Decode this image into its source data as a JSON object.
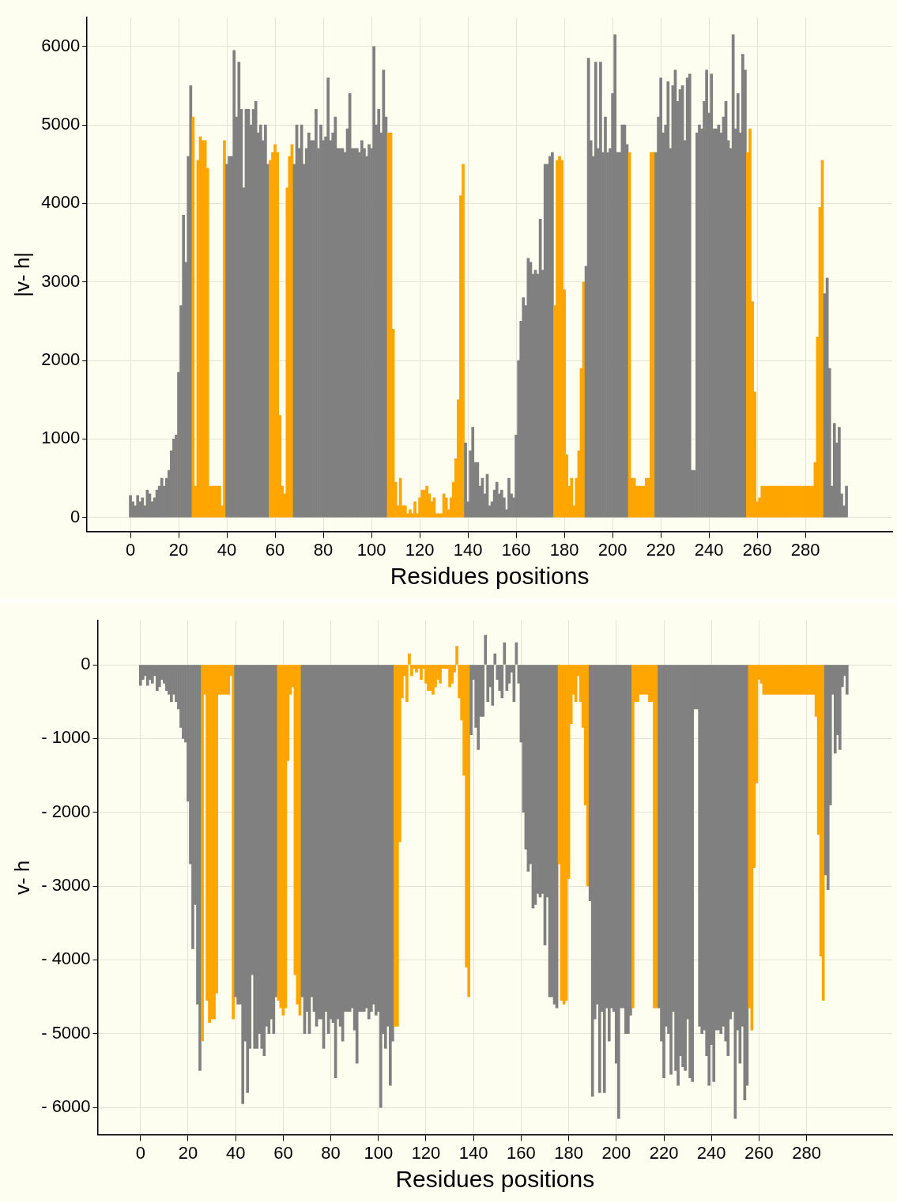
{
  "chart_data": [
    {
      "type": "bar",
      "xlabel": "Residues positions",
      "ylabel": "|v- h|",
      "grid": true,
      "xlim": [
        -18,
        316
      ],
      "ylim": [
        -180,
        6370
      ],
      "xticks": [
        0,
        20,
        40,
        60,
        80,
        100,
        120,
        140,
        160,
        180,
        200,
        220,
        240,
        260,
        280
      ],
      "yticks": [
        0,
        1000,
        2000,
        3000,
        4000,
        5000,
        6000
      ],
      "x": [
        0,
        1,
        2,
        3,
        4,
        5,
        6,
        7,
        8,
        9,
        10,
        11,
        12,
        13,
        14,
        15,
        16,
        17,
        18,
        19,
        20,
        21,
        22,
        23,
        24,
        25,
        26,
        27,
        28,
        29,
        30,
        31,
        32,
        33,
        34,
        35,
        36,
        37,
        38,
        39,
        40,
        41,
        42,
        43,
        44,
        45,
        46,
        47,
        48,
        49,
        50,
        51,
        52,
        53,
        54,
        55,
        56,
        57,
        58,
        59,
        60,
        61,
        62,
        63,
        64,
        65,
        66,
        67,
        68,
        69,
        70,
        71,
        72,
        73,
        74,
        75,
        76,
        77,
        78,
        79,
        80,
        81,
        82,
        83,
        84,
        85,
        86,
        87,
        88,
        89,
        90,
        91,
        92,
        93,
        94,
        95,
        96,
        97,
        98,
        99,
        100,
        101,
        102,
        103,
        104,
        105,
        106,
        107,
        108,
        109,
        110,
        111,
        112,
        113,
        114,
        115,
        116,
        117,
        118,
        119,
        120,
        121,
        122,
        123,
        124,
        125,
        126,
        127,
        128,
        129,
        130,
        131,
        132,
        133,
        134,
        135,
        136,
        137,
        138,
        139,
        140,
        141,
        142,
        143,
        144,
        145,
        146,
        147,
        148,
        149,
        150,
        151,
        152,
        153,
        154,
        155,
        156,
        157,
        158,
        159,
        160,
        161,
        162,
        163,
        164,
        165,
        166,
        167,
        168,
        169,
        170,
        171,
        172,
        173,
        174,
        175,
        176,
        177,
        178,
        179,
        180,
        181,
        182,
        183,
        184,
        185,
        186,
        187,
        188,
        189,
        190,
        191,
        192,
        193,
        194,
        195,
        196,
        197,
        198,
        199,
        200,
        201,
        202,
        203,
        204,
        205,
        206,
        207,
        208,
        209,
        210,
        211,
        212,
        213,
        214,
        215,
        216,
        217,
        218,
        219,
        220,
        221,
        222,
        223,
        224,
        225,
        226,
        227,
        228,
        229,
        230,
        231,
        232,
        233,
        234,
        235,
        236,
        237,
        238,
        239,
        240,
        241,
        242,
        243,
        244,
        245,
        246,
        247,
        248,
        249,
        250,
        251,
        252,
        253,
        254,
        255,
        256,
        257,
        258,
        259,
        260,
        261,
        262,
        263,
        264,
        265,
        266,
        267,
        268,
        269,
        270,
        271,
        272,
        273,
        274,
        275,
        276,
        277,
        278,
        279,
        280,
        281,
        282,
        283,
        284,
        285,
        286,
        287,
        288,
        289,
        290,
        291,
        292,
        293,
        294,
        295,
        296,
        297
      ],
      "values": [
        280,
        200,
        150,
        280,
        200,
        250,
        150,
        350,
        300,
        200,
        250,
        350,
        400,
        500,
        400,
        500,
        600,
        850,
        1000,
        1050,
        1850,
        2700,
        3850,
        3250,
        4600,
        5500,
        5100,
        400,
        4550,
        4850,
        4800,
        4800,
        4450,
        400,
        400,
        400,
        400,
        400,
        150,
        4800,
        4500,
        4600,
        4600,
        5950,
        5100,
        5800,
        5200,
        4200,
        5200,
        5200,
        5000,
        5200,
        5300,
        4900,
        5000,
        4800,
        5000,
        4500,
        4550,
        4650,
        4750,
        4650,
        1300,
        400,
        300,
        4200,
        4600,
        4750,
        4500,
        5000,
        4700,
        5000,
        4500,
        4700,
        4900,
        4800,
        4800,
        5200,
        4700,
        5000,
        4800,
        4850,
        5600,
        4800,
        4900,
        5100,
        4700,
        4700,
        4700,
        4650,
        4950,
        5400,
        4700,
        4700,
        4700,
        4650,
        4800,
        4700,
        4600,
        4750,
        4700,
        6000,
        5000,
        5200,
        4900,
        5700,
        5100,
        4900,
        4900,
        2400,
        450,
        150,
        500,
        150,
        150,
        50,
        100,
        50,
        200,
        50,
        250,
        350,
        350,
        400,
        300,
        200,
        250,
        50,
        50,
        50,
        300,
        250,
        100,
        250,
        450,
        750,
        1500,
        4100,
        4500,
        950,
        200,
        850,
        1150,
        700,
        700,
        400,
        500,
        300,
        550,
        150,
        200,
        350,
        450,
        300,
        350,
        250,
        100,
        500,
        300,
        250,
        1050,
        2000,
        2500,
        2800,
        2700,
        3300,
        3250,
        3100,
        3150,
        3100,
        3800,
        3150,
        4500,
        4500,
        4600,
        4650,
        2700,
        4550,
        4600,
        4550,
        2900,
        800,
        400,
        500,
        150,
        500,
        850,
        1900,
        3000,
        3200,
        5850,
        4800,
        4600,
        5800,
        4700,
        5800,
        4650,
        5100,
        4650,
        4700,
        5400,
        6150,
        4650,
        4650,
        5000,
        5000,
        4750,
        4650,
        500,
        500,
        400,
        400,
        400,
        400,
        500,
        500,
        4650,
        4650,
        4650,
        5100,
        5600,
        4900,
        5000,
        5550,
        4700,
        5500,
        5700,
        5300,
        5450,
        5500,
        4800,
        5600,
        5650,
        600,
        600,
        4900,
        5000,
        4950,
        5300,
        5700,
        5150,
        5650,
        4950,
        4950,
        5000,
        4900,
        5100,
        5300,
        4800,
        4700,
        6150,
        4950,
        5400,
        4900,
        5900,
        5700,
        4650,
        4950,
        2750,
        1600,
        200,
        250,
        400,
        400,
        400,
        400,
        400,
        400,
        400,
        400,
        400,
        400,
        400,
        400,
        400,
        400,
        400,
        400,
        400,
        400,
        400,
        400,
        400,
        400,
        700,
        2300,
        3950,
        4550,
        2850,
        3050,
        1900,
        400,
        1200,
        950,
        1150,
        300,
        150,
        400
      ],
      "colors": [
        "#808080",
        "#808080",
        "#808080",
        "#808080",
        "#808080",
        "#808080",
        "#808080",
        "#808080",
        "#808080",
        "#808080",
        "#808080",
        "#808080",
        "#808080",
        "#808080",
        "#808080",
        "#808080",
        "#808080",
        "#808080",
        "#808080",
        "#808080",
        "#808080",
        "#808080",
        "#808080",
        "#808080",
        "#808080",
        "#808080",
        "#ffa500",
        "#ffa500",
        "#ffa500",
        "#ffa500",
        "#ffa500",
        "#ffa500",
        "#ffa500",
        "#ffa500",
        "#ffa500",
        "#ffa500",
        "#ffa500",
        "#ffa500",
        "#ffa500",
        "#ffa500",
        "#808080",
        "#808080",
        "#808080",
        "#808080",
        "#808080",
        "#808080",
        "#808080",
        "#808080",
        "#808080",
        "#808080",
        "#808080",
        "#808080",
        "#808080",
        "#808080",
        "#808080",
        "#808080",
        "#808080",
        "#808080",
        "#ffa500",
        "#ffa500",
        "#ffa500",
        "#ffa500",
        "#ffa500",
        "#ffa500",
        "#ffa500",
        "#ffa500",
        "#ffa500",
        "#ffa500",
        "#808080",
        "#808080",
        "#808080",
        "#808080",
        "#808080",
        "#808080",
        "#808080",
        "#808080",
        "#808080",
        "#808080",
        "#808080",
        "#808080",
        "#808080",
        "#808080",
        "#808080",
        "#808080",
        "#808080",
        "#808080",
        "#808080",
        "#808080",
        "#808080",
        "#808080",
        "#808080",
        "#808080",
        "#808080",
        "#808080",
        "#808080",
        "#808080",
        "#808080",
        "#808080",
        "#808080",
        "#808080",
        "#808080",
        "#808080",
        "#808080",
        "#808080",
        "#808080",
        "#808080",
        "#808080",
        "#ffa500",
        "#ffa500",
        "#ffa500",
        "#ffa500",
        "#ffa500",
        "#ffa500",
        "#ffa500",
        "#ffa500",
        "#ffa500",
        "#ffa500",
        "#ffa500",
        "#ffa500",
        "#ffa500",
        "#ffa500",
        "#ffa500",
        "#ffa500",
        "#ffa500",
        "#ffa500",
        "#ffa500",
        "#ffa500",
        "#ffa500",
        "#ffa500",
        "#ffa500",
        "#ffa500",
        "#ffa500",
        "#ffa500",
        "#ffa500",
        "#ffa500",
        "#ffa500",
        "#ffa500",
        "#ffa500",
        "#ffa500",
        "#808080",
        "#808080",
        "#808080",
        "#808080",
        "#808080",
        "#808080",
        "#808080",
        "#808080",
        "#808080",
        "#808080",
        "#808080",
        "#808080",
        "#808080",
        "#808080",
        "#808080",
        "#808080",
        "#808080",
        "#808080",
        "#808080",
        "#808080",
        "#808080",
        "#808080",
        "#808080",
        "#808080",
        "#808080",
        "#808080",
        "#808080",
        "#808080",
        "#808080",
        "#808080",
        "#808080",
        "#808080",
        "#808080",
        "#808080",
        "#808080",
        "#808080",
        "#808080",
        "#ffa500",
        "#ffa500",
        "#ffa500",
        "#ffa500",
        "#ffa500",
        "#ffa500",
        "#ffa500",
        "#ffa500",
        "#ffa500",
        "#ffa500",
        "#ffa500",
        "#ffa500",
        "#ffa500",
        "#808080",
        "#808080",
        "#808080",
        "#808080",
        "#808080",
        "#808080",
        "#808080",
        "#808080",
        "#808080",
        "#808080",
        "#808080",
        "#808080",
        "#808080",
        "#808080",
        "#808080",
        "#808080",
        "#808080",
        "#808080",
        "#ffa500",
        "#ffa500",
        "#ffa500",
        "#ffa500",
        "#ffa500",
        "#ffa500",
        "#ffa500",
        "#ffa500",
        "#ffa500",
        "#ffa500",
        "#ffa500",
        "#808080",
        "#808080",
        "#808080",
        "#808080",
        "#808080",
        "#808080",
        "#808080",
        "#808080",
        "#808080",
        "#808080",
        "#808080",
        "#808080",
        "#808080",
        "#808080",
        "#808080",
        "#808080",
        "#808080",
        "#808080",
        "#808080",
        "#808080",
        "#808080",
        "#808080",
        "#808080",
        "#808080",
        "#808080",
        "#808080",
        "#808080",
        "#808080",
        "#808080",
        "#808080",
        "#808080",
        "#808080",
        "#808080",
        "#808080",
        "#808080",
        "#808080",
        "#808080",
        "#808080",
        "#ffa500",
        "#ffa500",
        "#ffa500",
        "#ffa500",
        "#ffa500",
        "#ffa500",
        "#ffa500",
        "#ffa500",
        "#ffa500",
        "#ffa500",
        "#ffa500",
        "#ffa500",
        "#ffa500",
        "#ffa500",
        "#ffa500",
        "#ffa500",
        "#ffa500",
        "#ffa500",
        "#ffa500",
        "#ffa500",
        "#ffa500",
        "#ffa500",
        "#ffa500",
        "#ffa500",
        "#ffa500",
        "#ffa500",
        "#ffa500",
        "#ffa500",
        "#ffa500",
        "#ffa500",
        "#ffa500",
        "#ffa500",
        "#808080",
        "#808080",
        "#808080",
        "#808080",
        "#808080",
        "#808080",
        "#808080",
        "#808080",
        "#808080",
        "#808080"
      ]
    },
    {
      "type": "bar",
      "xlabel": "Residues positions",
      "ylabel": "v- h",
      "grid": true,
      "xlim": [
        -18,
        316
      ],
      "ylim": [
        -6370,
        600
      ],
      "xticks": [
        0,
        20,
        40,
        60,
        80,
        100,
        120,
        140,
        160,
        180,
        200,
        220,
        240,
        260,
        280
      ],
      "yticks": [
        {
          "value": -6000,
          "label": "- 6000"
        },
        {
          "value": -5000,
          "label": "- 5000"
        },
        {
          "value": -4000,
          "label": "- 4000"
        },
        {
          "value": -3000,
          "label": "- 3000"
        },
        {
          "value": -2000,
          "label": "- 2000"
        },
        {
          "value": -1000,
          "label": "- 1000"
        },
        0
      ],
      "x": [
        0,
        1,
        2,
        3,
        4,
        5,
        6,
        7,
        8,
        9,
        10,
        11,
        12,
        13,
        14,
        15,
        16,
        17,
        18,
        19,
        20,
        21,
        22,
        23,
        24,
        25,
        26,
        27,
        28,
        29,
        30,
        31,
        32,
        33,
        34,
        35,
        36,
        37,
        38,
        39,
        40,
        41,
        42,
        43,
        44,
        45,
        46,
        47,
        48,
        49,
        50,
        51,
        52,
        53,
        54,
        55,
        56,
        57,
        58,
        59,
        60,
        61,
        62,
        63,
        64,
        65,
        66,
        67,
        68,
        69,
        70,
        71,
        72,
        73,
        74,
        75,
        76,
        77,
        78,
        79,
        80,
        81,
        82,
        83,
        84,
        85,
        86,
        87,
        88,
        89,
        90,
        91,
        92,
        93,
        94,
        95,
        96,
        97,
        98,
        99,
        100,
        101,
        102,
        103,
        104,
        105,
        106,
        107,
        108,
        109,
        110,
        111,
        112,
        113,
        114,
        115,
        116,
        117,
        118,
        119,
        120,
        121,
        122,
        123,
        124,
        125,
        126,
        127,
        128,
        129,
        130,
        131,
        132,
        133,
        134,
        135,
        136,
        137,
        138,
        139,
        140,
        141,
        142,
        143,
        144,
        145,
        146,
        147,
        148,
        149,
        150,
        151,
        152,
        153,
        154,
        155,
        156,
        157,
        158,
        159,
        160,
        161,
        162,
        163,
        164,
        165,
        166,
        167,
        168,
        169,
        170,
        171,
        172,
        173,
        174,
        175,
        176,
        177,
        178,
        179,
        180,
        181,
        182,
        183,
        184,
        185,
        186,
        187,
        188,
        189,
        190,
        191,
        192,
        193,
        194,
        195,
        196,
        197,
        198,
        199,
        200,
        201,
        202,
        203,
        204,
        205,
        206,
        207,
        208,
        209,
        210,
        211,
        212,
        213,
        214,
        215,
        216,
        217,
        218,
        219,
        220,
        221,
        222,
        223,
        224,
        225,
        226,
        227,
        228,
        229,
        230,
        231,
        232,
        233,
        234,
        235,
        236,
        237,
        238,
        239,
        240,
        241,
        242,
        243,
        244,
        245,
        246,
        247,
        248,
        249,
        250,
        251,
        252,
        253,
        254,
        255,
        256,
        257,
        258,
        259,
        260,
        261,
        262,
        263,
        264,
        265,
        266,
        267,
        268,
        269,
        270,
        271,
        272,
        273,
        274,
        275,
        276,
        277,
        278,
        279,
        280,
        281,
        282,
        283,
        284,
        285,
        286,
        287,
        288,
        289,
        290,
        291,
        292,
        293,
        294,
        295,
        296,
        297
      ],
      "values": [
        -280,
        -200,
        -150,
        -280,
        -200,
        -250,
        -150,
        -350,
        -300,
        -200,
        -250,
        -350,
        -400,
        -500,
        -400,
        -500,
        -600,
        -850,
        -1000,
        -1050,
        -1850,
        -2700,
        -3850,
        -3250,
        -4600,
        -5500,
        -5100,
        -400,
        -4550,
        -4850,
        -4800,
        -4800,
        -4450,
        -400,
        -400,
        -400,
        -400,
        -400,
        -150,
        -4800,
        -4500,
        -4600,
        -4600,
        -5950,
        -5100,
        -5800,
        -5200,
        -4200,
        -5200,
        -5200,
        -5000,
        -5200,
        -5300,
        -4900,
        -5000,
        -4800,
        -5000,
        -4500,
        -4550,
        -4650,
        -4750,
        -4650,
        -1300,
        -400,
        -300,
        -4200,
        -4600,
        -4750,
        -4500,
        -5000,
        -4700,
        -5000,
        -4500,
        -4700,
        -4900,
        -4800,
        -4800,
        -5200,
        -4700,
        -5000,
        -4800,
        -4850,
        -5600,
        -4800,
        -4900,
        -5100,
        -4700,
        -4700,
        -4700,
        -4650,
        -4950,
        -5400,
        -4700,
        -4700,
        -4700,
        -4650,
        -4800,
        -4700,
        -4600,
        -4750,
        -4700,
        -6000,
        -5000,
        -5200,
        -4900,
        -5700,
        -5100,
        -4900,
        -4900,
        -2400,
        -450,
        -150,
        -500,
        150,
        -150,
        -50,
        -100,
        -50,
        -200,
        -50,
        -250,
        -350,
        -350,
        -400,
        -300,
        -200,
        -250,
        -50,
        -50,
        -50,
        -300,
        -250,
        -100,
        250,
        -450,
        -750,
        -1500,
        -4100,
        -4500,
        -950,
        -200,
        -850,
        -1150,
        -700,
        -700,
        400,
        -500,
        -300,
        -550,
        150,
        -200,
        -350,
        -450,
        300,
        -350,
        -250,
        -100,
        -500,
        300,
        -250,
        -1050,
        -2000,
        -2500,
        -2800,
        -2700,
        -3300,
        -3250,
        -3100,
        -3150,
        -3100,
        -3800,
        -3150,
        -4500,
        -4500,
        -4600,
        -4650,
        -2700,
        -4550,
        -4600,
        -4550,
        -2900,
        -800,
        -400,
        -500,
        -150,
        -500,
        -850,
        -1900,
        -3000,
        -3200,
        -5850,
        -4800,
        -4600,
        -5800,
        -4700,
        -5800,
        -4650,
        -5100,
        -4650,
        -4700,
        -5400,
        -6150,
        -4650,
        -4650,
        -5000,
        -5000,
        -4750,
        -4650,
        -500,
        -500,
        -400,
        -400,
        -400,
        -400,
        -500,
        -500,
        -4650,
        -4650,
        -4650,
        -5100,
        -5600,
        -4900,
        -5000,
        -5550,
        -4700,
        -5500,
        -5700,
        -5300,
        -5450,
        -5500,
        -4800,
        -5600,
        -5650,
        -600,
        -600,
        -4900,
        -5000,
        -4950,
        -5300,
        -5700,
        -5150,
        -5650,
        -4950,
        -4950,
        -5000,
        -4900,
        -5100,
        -5300,
        -4800,
        -4700,
        -6150,
        -4950,
        -5400,
        -4900,
        -5900,
        -5700,
        -4650,
        -4950,
        -2750,
        -1600,
        -200,
        -250,
        -400,
        -400,
        -400,
        -400,
        -400,
        -400,
        -400,
        -400,
        -400,
        -400,
        -400,
        -400,
        -400,
        -400,
        -400,
        -400,
        -400,
        -400,
        -400,
        -400,
        -400,
        -400,
        -700,
        -2300,
        -3950,
        -4550,
        -2850,
        -3050,
        -1900,
        -400,
        -1200,
        -950,
        -1150,
        -300,
        -150,
        -400
      ],
      "colors": [
        "#808080",
        "#808080",
        "#808080",
        "#808080",
        "#808080",
        "#808080",
        "#808080",
        "#808080",
        "#808080",
        "#808080",
        "#808080",
        "#808080",
        "#808080",
        "#808080",
        "#808080",
        "#808080",
        "#808080",
        "#808080",
        "#808080",
        "#808080",
        "#808080",
        "#808080",
        "#808080",
        "#808080",
        "#808080",
        "#808080",
        "#ffa500",
        "#ffa500",
        "#ffa500",
        "#ffa500",
        "#ffa500",
        "#ffa500",
        "#ffa500",
        "#ffa500",
        "#ffa500",
        "#ffa500",
        "#ffa500",
        "#ffa500",
        "#ffa500",
        "#ffa500",
        "#808080",
        "#808080",
        "#808080",
        "#808080",
        "#808080",
        "#808080",
        "#808080",
        "#808080",
        "#808080",
        "#808080",
        "#808080",
        "#808080",
        "#808080",
        "#808080",
        "#808080",
        "#808080",
        "#808080",
        "#808080",
        "#ffa500",
        "#ffa500",
        "#ffa500",
        "#ffa500",
        "#ffa500",
        "#ffa500",
        "#ffa500",
        "#ffa500",
        "#ffa500",
        "#ffa500",
        "#808080",
        "#808080",
        "#808080",
        "#808080",
        "#808080",
        "#808080",
        "#808080",
        "#808080",
        "#808080",
        "#808080",
        "#808080",
        "#808080",
        "#808080",
        "#808080",
        "#808080",
        "#808080",
        "#808080",
        "#808080",
        "#808080",
        "#808080",
        "#808080",
        "#808080",
        "#808080",
        "#808080",
        "#808080",
        "#808080",
        "#808080",
        "#808080",
        "#808080",
        "#808080",
        "#808080",
        "#808080",
        "#808080",
        "#808080",
        "#808080",
        "#808080",
        "#808080",
        "#808080",
        "#808080",
        "#ffa500",
        "#ffa500",
        "#ffa500",
        "#ffa500",
        "#ffa500",
        "#ffa500",
        "#ffa500",
        "#ffa500",
        "#ffa500",
        "#ffa500",
        "#ffa500",
        "#ffa500",
        "#ffa500",
        "#ffa500",
        "#ffa500",
        "#ffa500",
        "#ffa500",
        "#ffa500",
        "#ffa500",
        "#ffa500",
        "#ffa500",
        "#ffa500",
        "#ffa500",
        "#ffa500",
        "#ffa500",
        "#ffa500",
        "#ffa500",
        "#ffa500",
        "#ffa500",
        "#ffa500",
        "#ffa500",
        "#ffa500",
        "#808080",
        "#808080",
        "#808080",
        "#808080",
        "#808080",
        "#808080",
        "#808080",
        "#808080",
        "#808080",
        "#808080",
        "#808080",
        "#808080",
        "#808080",
        "#808080",
        "#808080",
        "#808080",
        "#808080",
        "#808080",
        "#808080",
        "#808080",
        "#808080",
        "#808080",
        "#808080",
        "#808080",
        "#808080",
        "#808080",
        "#808080",
        "#808080",
        "#808080",
        "#808080",
        "#808080",
        "#808080",
        "#808080",
        "#808080",
        "#808080",
        "#808080",
        "#808080",
        "#ffa500",
        "#ffa500",
        "#ffa500",
        "#ffa500",
        "#ffa500",
        "#ffa500",
        "#ffa500",
        "#ffa500",
        "#ffa500",
        "#ffa500",
        "#ffa500",
        "#ffa500",
        "#ffa500",
        "#808080",
        "#808080",
        "#808080",
        "#808080",
        "#808080",
        "#808080",
        "#808080",
        "#808080",
        "#808080",
        "#808080",
        "#808080",
        "#808080",
        "#808080",
        "#808080",
        "#808080",
        "#808080",
        "#808080",
        "#808080",
        "#ffa500",
        "#ffa500",
        "#ffa500",
        "#ffa500",
        "#ffa500",
        "#ffa500",
        "#ffa500",
        "#ffa500",
        "#ffa500",
        "#ffa500",
        "#ffa500",
        "#808080",
        "#808080",
        "#808080",
        "#808080",
        "#808080",
        "#808080",
        "#808080",
        "#808080",
        "#808080",
        "#808080",
        "#808080",
        "#808080",
        "#808080",
        "#808080",
        "#808080",
        "#808080",
        "#808080",
        "#808080",
        "#808080",
        "#808080",
        "#808080",
        "#808080",
        "#808080",
        "#808080",
        "#808080",
        "#808080",
        "#808080",
        "#808080",
        "#808080",
        "#808080",
        "#808080",
        "#808080",
        "#808080",
        "#808080",
        "#808080",
        "#808080",
        "#808080",
        "#808080",
        "#ffa500",
        "#ffa500",
        "#ffa500",
        "#ffa500",
        "#ffa500",
        "#ffa500",
        "#ffa500",
        "#ffa500",
        "#ffa500",
        "#ffa500",
        "#ffa500",
        "#ffa500",
        "#ffa500",
        "#ffa500",
        "#ffa500",
        "#ffa500",
        "#ffa500",
        "#ffa500",
        "#ffa500",
        "#ffa500",
        "#ffa500",
        "#ffa500",
        "#ffa500",
        "#ffa500",
        "#ffa500",
        "#ffa500",
        "#ffa500",
        "#ffa500",
        "#ffa500",
        "#ffa500",
        "#ffa500",
        "#ffa500",
        "#808080",
        "#808080",
        "#808080",
        "#808080",
        "#808080",
        "#808080",
        "#808080",
        "#808080",
        "#808080",
        "#808080"
      ]
    }
  ]
}
